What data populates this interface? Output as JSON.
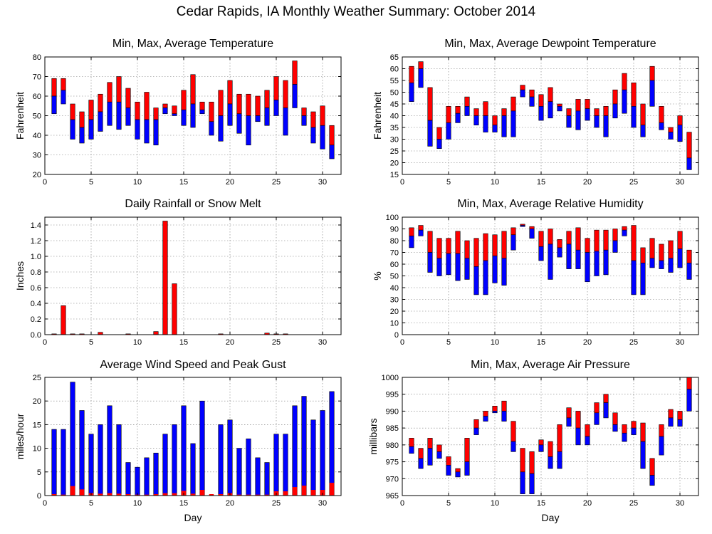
{
  "title": "Cedar Rapids, IA Monthly Weather Summary: October 2014",
  "colors": {
    "max_segment": "#ff0000",
    "min_segment": "#0000ff",
    "grid": "#777777"
  },
  "chart_data": [
    {
      "id": "temp",
      "type": "bar",
      "title": "Min, Max, Average Temperature",
      "xlabel": "",
      "ylabel": "Fahrenheit",
      "xlim": [
        0,
        32
      ],
      "ylim": [
        20,
        80
      ],
      "xticks": [
        0,
        5,
        10,
        15,
        20,
        25,
        30
      ],
      "yticks": [
        20,
        30,
        40,
        50,
        60,
        70,
        80
      ],
      "grid": true,
      "days": [
        1,
        2,
        3,
        4,
        5,
        6,
        7,
        8,
        9,
        10,
        11,
        12,
        13,
        14,
        15,
        16,
        17,
        18,
        19,
        20,
        21,
        22,
        23,
        24,
        25,
        26,
        27,
        28,
        29,
        30,
        31
      ],
      "min": [
        51,
        56,
        38,
        36,
        38,
        42,
        45,
        43,
        45,
        38,
        36,
        35,
        51,
        50,
        45,
        44,
        51,
        40,
        37,
        45,
        41,
        35,
        47,
        45,
        50,
        40,
        54,
        45,
        36,
        33,
        28
      ],
      "avg": [
        60,
        63,
        48,
        44,
        48,
        52,
        57,
        57,
        54,
        48,
        48,
        48,
        54,
        51,
        53,
        56,
        53,
        47,
        50,
        56,
        51,
        50,
        50,
        54,
        58,
        54,
        66,
        50,
        44,
        45,
        35
      ],
      "max": [
        69,
        69,
        56,
        52,
        58,
        61,
        67,
        70,
        64,
        57,
        62,
        54,
        56,
        55,
        63,
        71,
        57,
        57,
        63,
        68,
        61,
        61,
        60,
        63,
        70,
        68,
        78,
        54,
        52,
        55,
        45
      ]
    },
    {
      "id": "dewpoint",
      "type": "bar",
      "title": "Min, Max, Average Dewpoint Temperature",
      "xlabel": "",
      "ylabel": "Fahrenheit",
      "xlim": [
        0,
        32
      ],
      "ylim": [
        15,
        65
      ],
      "xticks": [
        0,
        5,
        10,
        15,
        20,
        25,
        30
      ],
      "yticks": [
        15,
        20,
        25,
        30,
        35,
        40,
        45,
        50,
        55,
        60,
        65
      ],
      "grid": true,
      "days": [
        1,
        2,
        3,
        4,
        5,
        6,
        7,
        8,
        9,
        10,
        11,
        12,
        13,
        14,
        15,
        16,
        17,
        18,
        19,
        20,
        21,
        22,
        23,
        24,
        25,
        26,
        27,
        28,
        29,
        30,
        31
      ],
      "min": [
        46,
        52,
        27,
        26,
        30,
        37,
        40,
        36,
        33,
        33,
        31,
        31,
        48,
        44,
        38,
        39,
        42,
        35,
        34,
        38,
        35,
        31,
        39,
        41,
        35,
        31,
        44,
        34,
        30,
        29,
        17
      ],
      "avg": [
        54,
        60,
        38,
        30,
        37,
        41,
        44,
        40,
        40,
        36,
        40,
        42,
        51,
        48,
        44,
        46,
        44,
        40,
        42,
        43,
        40,
        40,
        45,
        51,
        44,
        36,
        55,
        37,
        33,
        36,
        22
      ],
      "max": [
        61,
        63,
        52,
        35,
        44,
        44,
        48,
        43,
        46,
        40,
        43,
        48,
        53,
        51,
        49,
        52,
        45,
        43,
        47,
        47,
        43,
        44,
        51,
        58,
        54,
        45,
        61,
        44,
        35,
        40,
        33
      ]
    },
    {
      "id": "rain",
      "type": "bar",
      "title": "Daily Rainfall or Snow Melt",
      "xlabel": "",
      "ylabel": "Inches",
      "xlim": [
        0,
        32
      ],
      "ylim": [
        0,
        1.5
      ],
      "xticks": [
        0,
        5,
        10,
        15,
        20,
        25,
        30
      ],
      "yticks": [
        0,
        0.2,
        0.4,
        0.6,
        0.8,
        1,
        1.2,
        1.4
      ],
      "ytick_labels": [
        "0.0",
        "0.2",
        "0.4",
        "0.6",
        "0.8",
        "1.0",
        "1.2",
        "1.4"
      ],
      "grid": true,
      "days": [
        1,
        2,
        3,
        4,
        5,
        6,
        7,
        8,
        9,
        10,
        11,
        12,
        13,
        14,
        15,
        16,
        17,
        18,
        19,
        20,
        21,
        22,
        23,
        24,
        25,
        26,
        27,
        28,
        29,
        30,
        31
      ],
      "values": [
        0.01,
        0.37,
        0.01,
        0.01,
        0,
        0.03,
        0,
        0,
        0.01,
        0,
        0,
        0.04,
        1.45,
        0.65,
        0,
        0,
        0,
        0,
        0.01,
        0,
        0,
        0,
        0,
        0.02,
        0.01,
        0.01,
        0,
        0,
        0,
        0,
        0
      ]
    },
    {
      "id": "humidity",
      "type": "bar",
      "title": "Min, Max, Average Relative Humidity",
      "xlabel": "",
      "ylabel": "%",
      "xlim": [
        0,
        32
      ],
      "ylim": [
        0,
        100
      ],
      "xticks": [
        0,
        5,
        10,
        15,
        20,
        25,
        30
      ],
      "yticks": [
        0,
        10,
        20,
        30,
        40,
        50,
        60,
        70,
        80,
        90,
        100
      ],
      "grid": true,
      "days": [
        1,
        2,
        3,
        4,
        5,
        6,
        7,
        8,
        9,
        10,
        11,
        12,
        13,
        14,
        15,
        16,
        17,
        18,
        19,
        20,
        21,
        22,
        23,
        24,
        25,
        26,
        27,
        28,
        29,
        30,
        31
      ],
      "min": [
        74,
        84,
        53,
        50,
        51,
        46,
        47,
        34,
        34,
        44,
        42,
        72,
        92,
        82,
        63,
        47,
        66,
        56,
        56,
        45,
        50,
        51,
        70,
        84,
        34,
        34,
        57,
        56,
        53,
        57,
        47
      ],
      "avg": [
        84,
        89,
        70,
        65,
        69,
        69,
        65,
        58,
        63,
        67,
        65,
        85,
        93,
        90,
        75,
        77,
        74,
        77,
        72,
        70,
        71,
        72,
        80,
        89,
        63,
        61,
        65,
        63,
        65,
        73,
        61
      ],
      "max": [
        91,
        93,
        88,
        82,
        82,
        88,
        80,
        82,
        86,
        85,
        88,
        91,
        94,
        92,
        88,
        90,
        81,
        88,
        91,
        82,
        89,
        89,
        90,
        92,
        93,
        74,
        82,
        77,
        80,
        88,
        72
      ]
    },
    {
      "id": "wind",
      "type": "bar",
      "title": "Average Wind Speed and Peak Gust",
      "xlabel": "Day",
      "ylabel": "miles/hour",
      "xlim": [
        0,
        32
      ],
      "ylim": [
        0,
        25
      ],
      "xticks": [
        0,
        5,
        10,
        15,
        20,
        25,
        30
      ],
      "yticks": [
        0,
        5,
        10,
        15,
        20,
        25
      ],
      "grid": true,
      "days": [
        1,
        2,
        3,
        4,
        5,
        6,
        7,
        8,
        9,
        10,
        11,
        12,
        13,
        14,
        15,
        16,
        17,
        18,
        19,
        20,
        21,
        22,
        23,
        24,
        25,
        26,
        27,
        28,
        29,
        30,
        31
      ],
      "avg_speed": [
        0.3,
        0.2,
        2.0,
        1.3,
        0.5,
        0.4,
        0.5,
        0.4,
        0.3,
        0.2,
        0.2,
        0.3,
        0.5,
        0.5,
        1.0,
        0.4,
        1.2,
        0.3,
        0.3,
        0.5,
        0.2,
        0.2,
        0.2,
        0.2,
        0.9,
        0.9,
        1.8,
        2.1,
        1.2,
        1.2,
        2.7
      ],
      "peak_gust": [
        14,
        14,
        24,
        18,
        13,
        15,
        19,
        15,
        7,
        6,
        8,
        9,
        13,
        15,
        19,
        11,
        20,
        0,
        15,
        16,
        10,
        12,
        8,
        7,
        13,
        13,
        19,
        21,
        16,
        18,
        22
      ]
    },
    {
      "id": "pressure",
      "type": "bar",
      "title": "Min, Max, Average Air Pressure",
      "xlabel": "Day",
      "ylabel": "millibars",
      "xlim": [
        0,
        32
      ],
      "ylim": [
        965,
        1000
      ],
      "xticks": [
        0,
        5,
        10,
        15,
        20,
        25,
        30
      ],
      "yticks": [
        965,
        970,
        975,
        980,
        985,
        990,
        995,
        1000
      ],
      "grid": true,
      "days": [
        1,
        2,
        3,
        4,
        5,
        6,
        7,
        8,
        9,
        10,
        11,
        12,
        13,
        14,
        15,
        16,
        17,
        18,
        19,
        20,
        21,
        22,
        23,
        24,
        25,
        26,
        27,
        28,
        29,
        30,
        31
      ],
      "min": [
        977.5,
        973,
        974,
        976,
        971,
        970.5,
        971,
        983,
        987,
        989.5,
        987,
        978,
        965.5,
        965.5,
        978,
        973,
        973,
        985.5,
        980,
        980,
        986,
        988,
        984,
        981,
        983,
        973,
        968,
        977,
        985.5,
        985.5,
        990
      ],
      "avg": [
        979.5,
        976,
        979,
        978,
        974,
        972,
        975,
        985,
        988.5,
        990,
        990,
        981,
        972,
        971.5,
        980,
        976.5,
        978,
        988,
        985,
        982.5,
        989.5,
        992.5,
        986,
        983.5,
        985,
        981,
        971,
        982.5,
        988,
        987.5,
        996.5
      ],
      "max": [
        982,
        979,
        982,
        980,
        976.5,
        973,
        982,
        987.5,
        990,
        991.5,
        993,
        987,
        979,
        978,
        981.5,
        981,
        986,
        991,
        990,
        986,
        992.5,
        995,
        989.5,
        986,
        987,
        986.5,
        976,
        986,
        990.5,
        990,
        1000
      ]
    }
  ]
}
